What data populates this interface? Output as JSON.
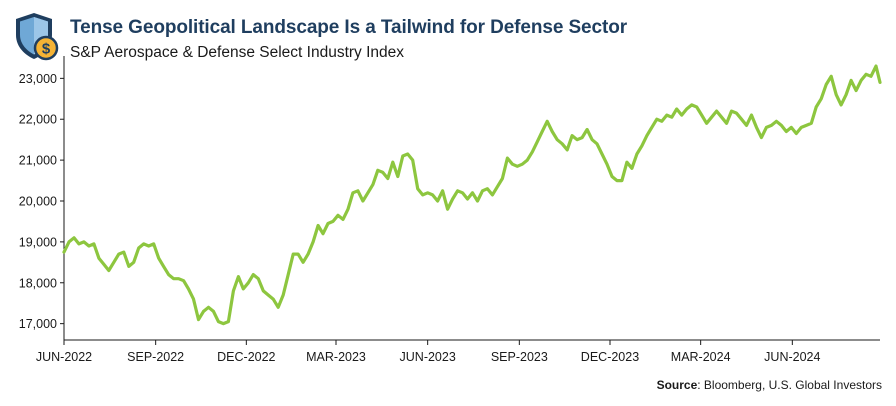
{
  "header": {
    "title": "Tense Geopolitical Landscape Is a Tailwind for Defense Sector",
    "subtitle": "S&P Aerospace & Defense Select Industry Index",
    "logo_icon": "shield-dollar-icon"
  },
  "source": {
    "label": "Source",
    "text": ": Bloomberg, U.S. Global Investors"
  },
  "colors": {
    "line": "#8dc63f",
    "title": "#1f3e5f",
    "axis": "#1a1a1a"
  },
  "chart_data": {
    "type": "line",
    "title": "Tense Geopolitical Landscape Is a Tailwind for Defense Sector",
    "subtitle": "S&P Aerospace & Defense Select Industry Index",
    "xlabel": "",
    "ylabel": "",
    "ylim": [
      16600,
      23400
    ],
    "yticks": [
      17000,
      18000,
      19000,
      20000,
      21000,
      22000,
      23000
    ],
    "ytick_labels": [
      "17,000",
      "18,000",
      "19,000",
      "20,000",
      "21,000",
      "22,000",
      "23,000"
    ],
    "xlim": [
      "2022-06-01",
      "2024-08-28"
    ],
    "xticks": [
      "2022-06-01",
      "2022-09-01",
      "2022-12-01",
      "2023-03-01",
      "2023-06-01",
      "2023-09-01",
      "2023-12-01",
      "2024-03-01",
      "2024-06-01"
    ],
    "xtick_labels": [
      "JUN-2022",
      "SEP-2022",
      "DEC-2022",
      "MAR-2023",
      "JUN-2023",
      "SEP-2023",
      "DEC-2023",
      "MAR-2024",
      "JUN-2024"
    ],
    "grid": false,
    "legend": "none",
    "series": [
      {
        "name": "",
        "x": [
          "2022-06-01",
          "2022-06-06",
          "2022-06-11",
          "2022-06-16",
          "2022-06-21",
          "2022-06-26",
          "2022-07-01",
          "2022-07-06",
          "2022-07-11",
          "2022-07-16",
          "2022-07-21",
          "2022-07-26",
          "2022-07-31",
          "2022-08-05",
          "2022-08-10",
          "2022-08-15",
          "2022-08-20",
          "2022-08-25",
          "2022-08-30",
          "2022-09-04",
          "2022-09-09",
          "2022-09-14",
          "2022-09-19",
          "2022-09-24",
          "2022-09-29",
          "2022-10-04",
          "2022-10-09",
          "2022-10-14",
          "2022-10-19",
          "2022-10-24",
          "2022-10-29",
          "2022-11-03",
          "2022-11-08",
          "2022-11-13",
          "2022-11-18",
          "2022-11-23",
          "2022-11-28",
          "2022-12-03",
          "2022-12-08",
          "2022-12-13",
          "2022-12-18",
          "2022-12-23",
          "2022-12-28",
          "2023-01-02",
          "2023-01-07",
          "2023-01-12",
          "2023-01-17",
          "2023-01-22",
          "2023-01-27",
          "2023-02-01",
          "2023-02-06",
          "2023-02-11",
          "2023-02-16",
          "2023-02-21",
          "2023-02-26",
          "2023-03-03",
          "2023-03-08",
          "2023-03-13",
          "2023-03-18",
          "2023-03-23",
          "2023-03-28",
          "2023-04-02",
          "2023-04-07",
          "2023-04-12",
          "2023-04-17",
          "2023-04-22",
          "2023-04-27",
          "2023-05-02",
          "2023-05-07",
          "2023-05-12",
          "2023-05-17",
          "2023-05-22",
          "2023-05-27",
          "2023-06-01",
          "2023-06-06",
          "2023-06-11",
          "2023-06-16",
          "2023-06-21",
          "2023-06-26",
          "2023-07-01",
          "2023-07-06",
          "2023-07-11",
          "2023-07-16",
          "2023-07-21",
          "2023-07-26",
          "2023-07-31",
          "2023-08-05",
          "2023-08-10",
          "2023-08-15",
          "2023-08-20",
          "2023-08-25",
          "2023-08-30",
          "2023-09-04",
          "2023-09-09",
          "2023-09-14",
          "2023-09-19",
          "2023-09-24",
          "2023-09-29",
          "2023-10-04",
          "2023-10-09",
          "2023-10-14",
          "2023-10-19",
          "2023-10-24",
          "2023-10-29",
          "2023-11-03",
          "2023-11-08",
          "2023-11-13",
          "2023-11-18",
          "2023-11-23",
          "2023-11-28",
          "2023-12-03",
          "2023-12-08",
          "2023-12-13",
          "2023-12-18",
          "2023-12-23",
          "2023-12-28",
          "2024-01-02",
          "2024-01-07",
          "2024-01-12",
          "2024-01-17",
          "2024-01-22",
          "2024-01-27",
          "2024-02-01",
          "2024-02-06",
          "2024-02-11",
          "2024-02-16",
          "2024-02-21",
          "2024-02-26",
          "2024-03-02",
          "2024-03-07",
          "2024-03-12",
          "2024-03-17",
          "2024-03-22",
          "2024-03-27",
          "2024-04-01",
          "2024-04-06",
          "2024-04-11",
          "2024-04-16",
          "2024-04-21",
          "2024-04-26",
          "2024-05-01",
          "2024-05-06",
          "2024-05-11",
          "2024-05-16",
          "2024-05-21",
          "2024-05-26",
          "2024-05-31",
          "2024-06-05",
          "2024-06-10",
          "2024-06-15",
          "2024-06-20",
          "2024-06-25",
          "2024-06-30",
          "2024-07-05",
          "2024-07-10",
          "2024-07-15",
          "2024-07-20",
          "2024-07-25",
          "2024-07-30",
          "2024-08-04",
          "2024-08-09",
          "2024-08-14",
          "2024-08-19",
          "2024-08-24",
          "2024-08-28"
        ],
        "values": [
          18750,
          19000,
          19100,
          18950,
          19000,
          18900,
          18950,
          18600,
          18450,
          18300,
          18500,
          18700,
          18750,
          18400,
          18500,
          18850,
          18950,
          18900,
          18950,
          18600,
          18400,
          18200,
          18100,
          18100,
          18050,
          17850,
          17600,
          17100,
          17300,
          17400,
          17300,
          17050,
          17000,
          17050,
          17800,
          18150,
          17850,
          18000,
          18200,
          18100,
          17800,
          17700,
          17600,
          17400,
          17700,
          18200,
          18700,
          18700,
          18500,
          18700,
          19000,
          19400,
          19200,
          19450,
          19500,
          19650,
          19550,
          19800,
          20200,
          20250,
          20000,
          20200,
          20400,
          20750,
          20700,
          20550,
          20950,
          20600,
          21100,
          21150,
          21000,
          20300,
          20150,
          20200,
          20150,
          20000,
          20250,
          19800,
          20050,
          20250,
          20200,
          20050,
          20200,
          20000,
          20250,
          20300,
          20150,
          20350,
          20550,
          21050,
          20900,
          20850,
          20900,
          21000,
          21200,
          21450,
          21700,
          21950,
          21700,
          21500,
          21400,
          21250,
          21600,
          21500,
          21550,
          21750,
          21500,
          21400,
          21150,
          20900,
          20600,
          20500,
          20500,
          20950,
          20800,
          21150,
          21350,
          21600,
          21800,
          22000,
          21950,
          22100,
          22050,
          22250,
          22100,
          22250,
          22350,
          22300,
          22100,
          21900,
          22050,
          22200,
          22050,
          21900,
          22200,
          22150,
          22000,
          21850,
          22100,
          21800,
          21550,
          21800,
          21850,
          21950,
          21850,
          21700,
          21800,
          21650,
          21800,
          21850,
          21900,
          22300,
          22500,
          22850,
          23050,
          22600,
          22350,
          22600,
          22950,
          22700,
          22950,
          23100,
          23050,
          23300,
          22900
        ]
      }
    ]
  }
}
